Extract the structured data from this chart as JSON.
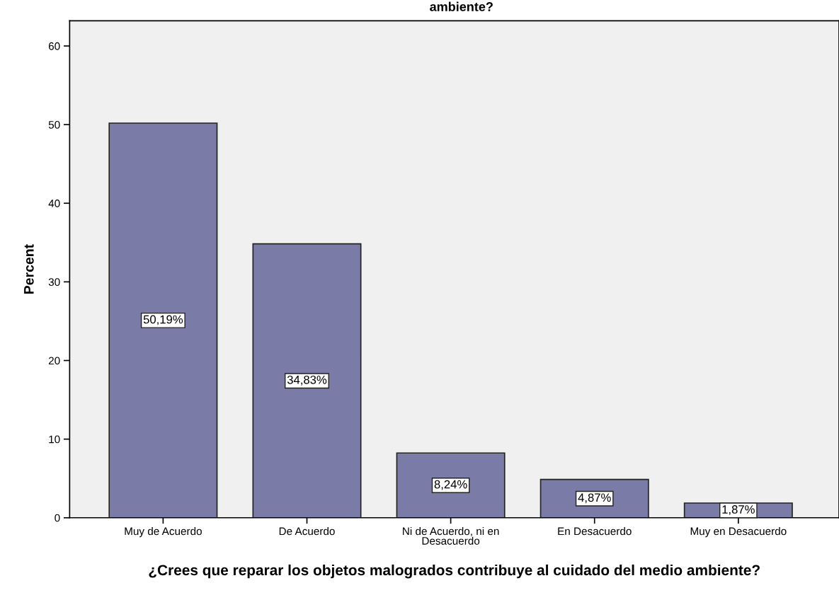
{
  "chart_data": {
    "type": "bar",
    "title": "ambiente?",
    "xlabel": "¿Crees que reparar los objetos malogrados contribuye al cuidado del medio ambiente?",
    "ylabel": "Percent",
    "categories": [
      "Muy de Acuerdo",
      "De Acuerdo",
      "Ni de Acuerdo, ni en\nDesacuerdo",
      "En Desacuerdo",
      "Muy en Desacuerdo"
    ],
    "values": [
      50.19,
      34.83,
      8.24,
      4.87,
      1.87
    ],
    "value_labels": [
      "50,19%",
      "34,83%",
      "8,24%",
      "4,87%",
      "1,87%"
    ],
    "color": "#7b7ba8",
    "ylim": [
      0,
      63.2
    ],
    "yticks": [
      0,
      10,
      20,
      30,
      40,
      50,
      60
    ],
    "grid": false,
    "legend": false
  }
}
